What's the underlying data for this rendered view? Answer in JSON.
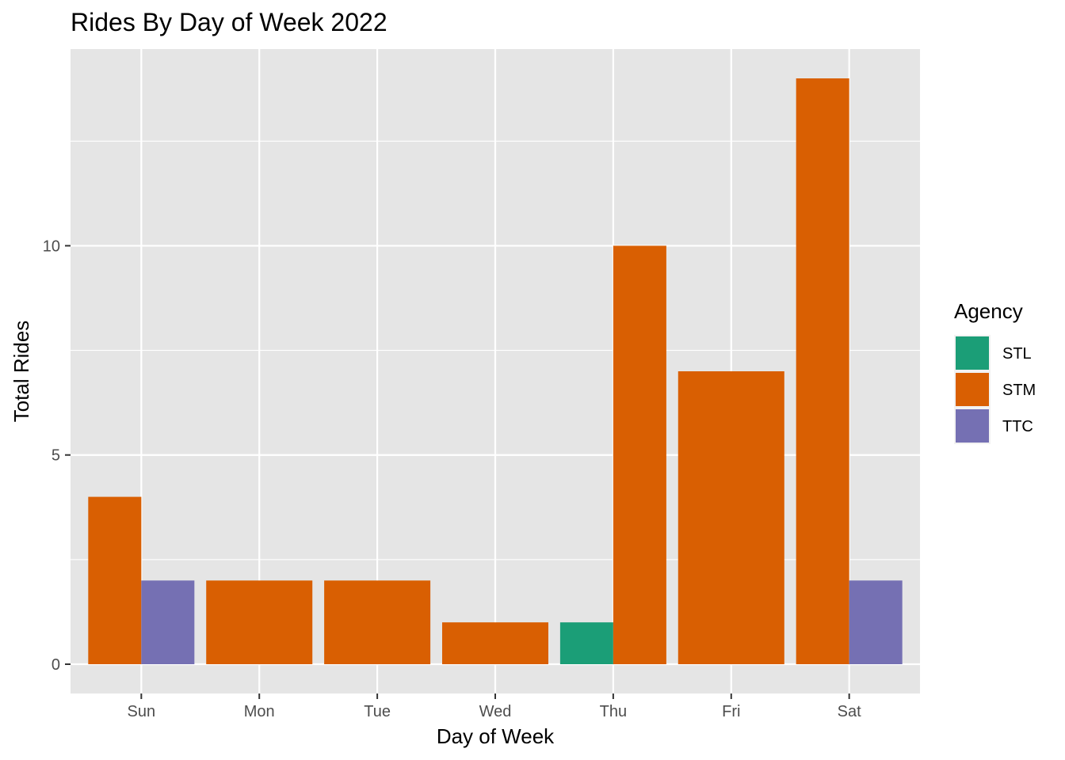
{
  "chart_data": {
    "type": "bar",
    "title": "Rides By Day of Week 2022",
    "xlabel": "Day of Week",
    "ylabel": "Total Rides",
    "categories": [
      "Sun",
      "Mon",
      "Tue",
      "Wed",
      "Thu",
      "Fri",
      "Sat"
    ],
    "yticks": [
      0,
      5,
      10
    ],
    "ylim": [
      -0.7,
      14.7
    ],
    "position": "dodge",
    "grid": true,
    "legend": {
      "title": "Agency",
      "placement": "right"
    },
    "series": [
      {
        "name": "STL",
        "color": "#1b9e77",
        "values": [
          0,
          0,
          0,
          0,
          1,
          0,
          0
        ]
      },
      {
        "name": "STM",
        "color": "#d95f02",
        "values": [
          4,
          2,
          2,
          1,
          10,
          7,
          14
        ]
      },
      {
        "name": "TTC",
        "color": "#7570b3",
        "values": [
          2,
          0,
          0,
          0,
          0,
          0,
          2
        ]
      }
    ],
    "panel_background": "#e5e5e5",
    "grid_color": "#ffffff"
  }
}
